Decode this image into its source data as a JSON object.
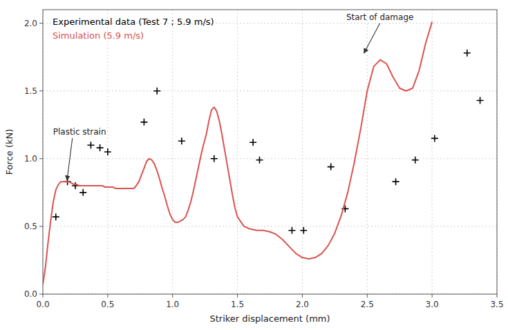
{
  "chart_data": {
    "type": "line",
    "xlabel": "Striker displacement (mm)",
    "ylabel": "Force (kN)",
    "xlim": [
      0,
      3.5
    ],
    "ylim": [
      0,
      2.1
    ],
    "xticks": [
      {
        "value": 0,
        "label": "0.0"
      },
      0.5,
      {
        "value": 1.0,
        "label": "1.0"
      },
      1.5,
      {
        "value": 2.0,
        "label": "2.0"
      },
      2.5,
      {
        "value": 3.0,
        "label": "3.0"
      },
      3.5
    ],
    "yticks": [
      {
        "value": 0,
        "label": "0.0"
      },
      0.5,
      {
        "value": 1.0,
        "label": "1.0"
      },
      1.5,
      {
        "value": 2.0,
        "label": "2.0"
      }
    ],
    "grid": true,
    "legend": "upper-left",
    "series": [
      {
        "name": "Experimental data (Test 7 ; 5.9 m/s)",
        "type": "scatter",
        "color": "#000000",
        "marker": "plus",
        "line_style": "none",
        "x": [
          0.1,
          0.19,
          0.25,
          0.31,
          0.37,
          0.44,
          0.5,
          0.78,
          0.88,
          1.07,
          1.32,
          1.62,
          1.67,
          1.92,
          2.01,
          2.22,
          2.33,
          2.72,
          2.87,
          3.02,
          3.27,
          3.37
        ],
        "values": [
          0.57,
          0.83,
          0.8,
          0.75,
          1.1,
          1.08,
          1.05,
          1.27,
          1.5,
          1.13,
          1.0,
          1.12,
          0.99,
          0.47,
          0.47,
          0.94,
          0.63,
          0.83,
          0.99,
          1.15,
          1.78,
          1.43
        ]
      },
      {
        "name": "Simulation (5.9 m/s)",
        "type": "line",
        "color": "#d9534f",
        "marker": "none",
        "line_style": "solid",
        "x": [
          0.0,
          0.02,
          0.04,
          0.06,
          0.08,
          0.1,
          0.12,
          0.14,
          0.16,
          0.18,
          0.2,
          0.22,
          0.24,
          0.26,
          0.28,
          0.3,
          0.32,
          0.34,
          0.36,
          0.38,
          0.4,
          0.42,
          0.44,
          0.46,
          0.48,
          0.5,
          0.52,
          0.54,
          0.56,
          0.58,
          0.6,
          0.62,
          0.64,
          0.66,
          0.68,
          0.7,
          0.72,
          0.74,
          0.76,
          0.78,
          0.8,
          0.82,
          0.84,
          0.86,
          0.88,
          0.9,
          0.92,
          0.94,
          0.96,
          0.98,
          1.0,
          1.02,
          1.04,
          1.06,
          1.08,
          1.1,
          1.12,
          1.14,
          1.16,
          1.18,
          1.2,
          1.22,
          1.24,
          1.26,
          1.28,
          1.3,
          1.32,
          1.34,
          1.36,
          1.38,
          1.4,
          1.42,
          1.44,
          1.46,
          1.48,
          1.5,
          1.55,
          1.6,
          1.65,
          1.7,
          1.75,
          1.8,
          1.85,
          1.9,
          1.95,
          2.0,
          2.05,
          2.1,
          2.15,
          2.2,
          2.25,
          2.3,
          2.35,
          2.4,
          2.45,
          2.5,
          2.55,
          2.6,
          2.65,
          2.7,
          2.75,
          2.8,
          2.85,
          2.9,
          2.95,
          3.0
        ],
        "values": [
          0.07,
          0.2,
          0.38,
          0.54,
          0.68,
          0.77,
          0.81,
          0.83,
          0.83,
          0.83,
          0.83,
          0.82,
          0.81,
          0.81,
          0.8,
          0.8,
          0.8,
          0.8,
          0.8,
          0.8,
          0.8,
          0.8,
          0.8,
          0.8,
          0.79,
          0.79,
          0.79,
          0.79,
          0.78,
          0.78,
          0.78,
          0.78,
          0.78,
          0.78,
          0.78,
          0.78,
          0.8,
          0.83,
          0.88,
          0.93,
          0.98,
          1.0,
          0.99,
          0.96,
          0.91,
          0.85,
          0.78,
          0.72,
          0.65,
          0.59,
          0.55,
          0.53,
          0.53,
          0.54,
          0.55,
          0.57,
          0.62,
          0.68,
          0.76,
          0.85,
          0.94,
          1.03,
          1.11,
          1.18,
          1.28,
          1.36,
          1.38,
          1.35,
          1.28,
          1.18,
          1.07,
          0.96,
          0.85,
          0.74,
          0.64,
          0.57,
          0.5,
          0.48,
          0.47,
          0.47,
          0.46,
          0.44,
          0.4,
          0.35,
          0.3,
          0.27,
          0.26,
          0.27,
          0.3,
          0.36,
          0.45,
          0.58,
          0.75,
          0.97,
          1.22,
          1.5,
          1.68,
          1.73,
          1.7,
          1.6,
          1.52,
          1.5,
          1.52,
          1.65,
          1.85,
          2.01
        ]
      }
    ],
    "annotations": [
      {
        "text": "Plastic strain",
        "x": 0.185,
        "y": 0.83
      },
      {
        "text": "Start of damage",
        "x": 2.47,
        "y": 1.77
      }
    ]
  }
}
